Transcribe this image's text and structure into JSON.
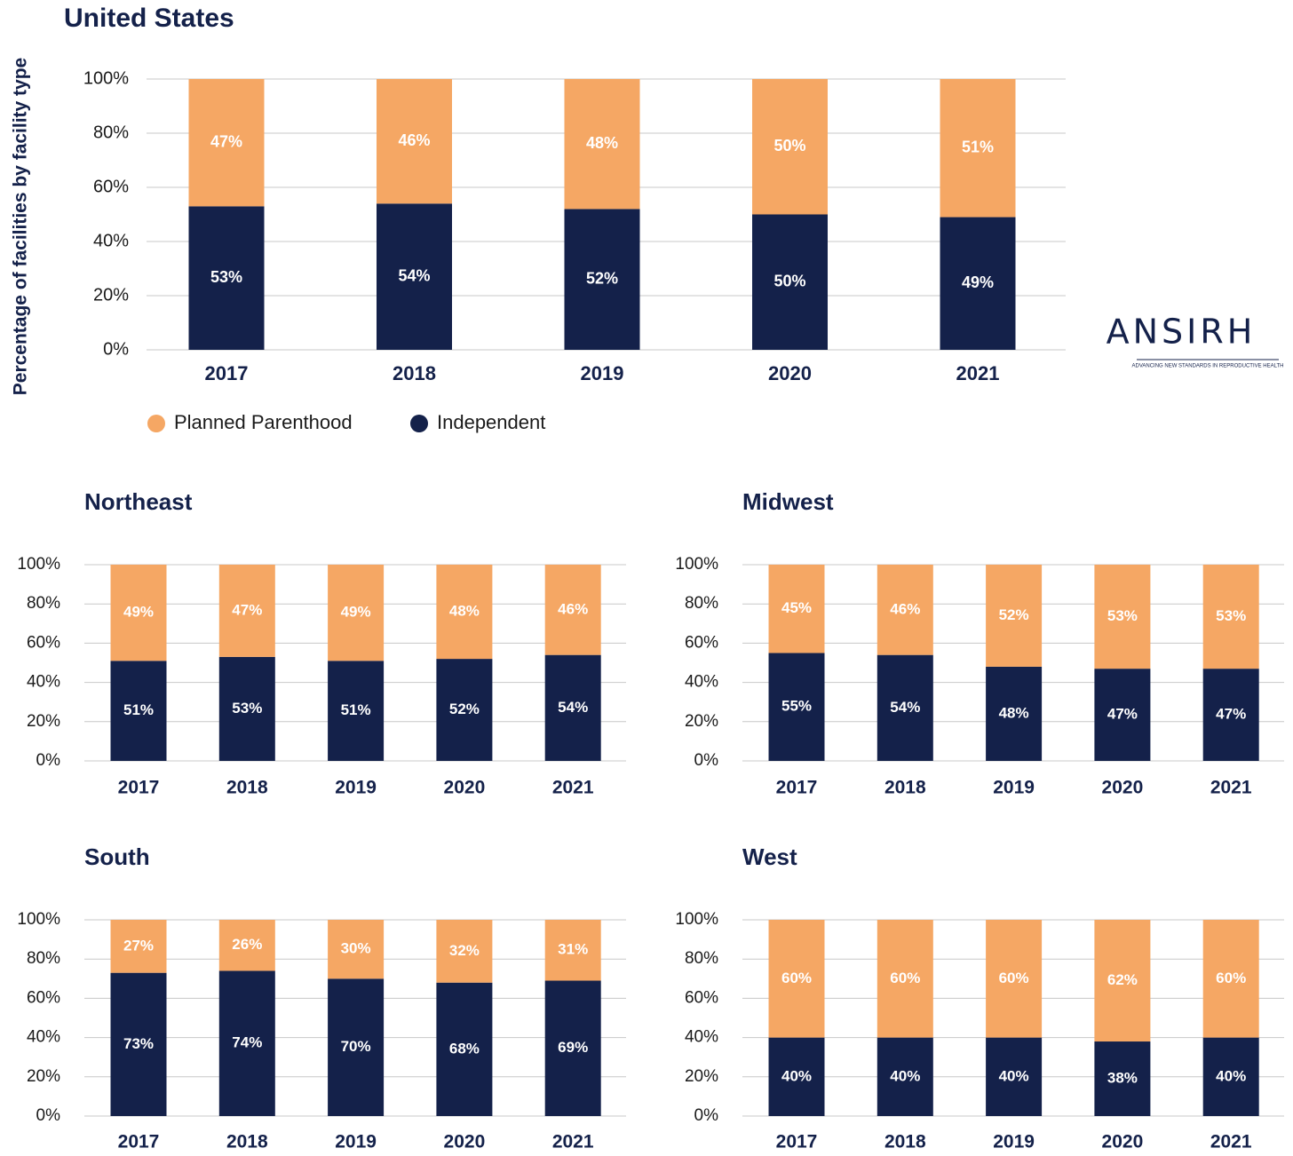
{
  "logo": {
    "name": "ANSIRH",
    "tagline": "ADVANCING NEW STANDARDS IN REPRODUCTIVE HEALTH"
  },
  "chart_data": [
    {
      "type": "stacked_bar",
      "title": "United States",
      "ylabel": "Percentage of facilities by facility type",
      "categories": [
        "2017",
        "2018",
        "2019",
        "2020",
        "2021"
      ],
      "series": [
        {
          "name": "Planned Parenthood",
          "color": "#f5a764",
          "values": [
            47,
            46,
            48,
            50,
            51
          ],
          "value_labels": [
            "47%",
            "46%",
            "48%",
            "50%",
            "51%"
          ]
        },
        {
          "name": "Independent",
          "color": "#14214a",
          "values": [
            53,
            54,
            52,
            50,
            49
          ],
          "value_labels": [
            "53%",
            "54%",
            "52%",
            "50%",
            "49%"
          ]
        }
      ],
      "ylim": [
        0,
        100
      ],
      "yticks": [
        {
          "value": 0,
          "label": "0%"
        },
        {
          "value": 20,
          "label": "20%"
        },
        {
          "value": 40,
          "label": "40%"
        },
        {
          "value": 60,
          "label": "60%"
        },
        {
          "value": 80,
          "label": "80%"
        },
        {
          "value": 100,
          "label": "100%"
        }
      ],
      "grid": true,
      "legend": "bottom"
    },
    {
      "type": "stacked_bar",
      "title": "Northeast",
      "categories": [
        "2017",
        "2018",
        "2019",
        "2020",
        "2021"
      ],
      "series": [
        {
          "name": "Planned Parenthood",
          "color": "#f5a764",
          "values": [
            49,
            47,
            49,
            48,
            46
          ],
          "value_labels": [
            "49%",
            "47%",
            "49%",
            "48%",
            "46%"
          ]
        },
        {
          "name": "Independent",
          "color": "#14214a",
          "values": [
            51,
            53,
            51,
            52,
            54
          ],
          "value_labels": [
            "51%",
            "53%",
            "51%",
            "52%",
            "54%"
          ]
        }
      ],
      "ylim": [
        0,
        100
      ],
      "yticks": [
        {
          "value": 0,
          "label": "0%"
        },
        {
          "value": 20,
          "label": "20%"
        },
        {
          "value": 40,
          "label": "40%"
        },
        {
          "value": 60,
          "label": "60%"
        },
        {
          "value": 80,
          "label": "80%"
        },
        {
          "value": 100,
          "label": "100%"
        }
      ],
      "grid": true
    },
    {
      "type": "stacked_bar",
      "title": "Midwest",
      "categories": [
        "2017",
        "2018",
        "2019",
        "2020",
        "2021"
      ],
      "series": [
        {
          "name": "Planned Parenthood",
          "color": "#f5a764",
          "values": [
            45,
            46,
            52,
            53,
            53
          ],
          "value_labels": [
            "45%",
            "46%",
            "52%",
            "53%",
            "53%"
          ]
        },
        {
          "name": "Independent",
          "color": "#14214a",
          "values": [
            55,
            54,
            48,
            47,
            47
          ],
          "value_labels": [
            "55%",
            "54%",
            "48%",
            "47%",
            "47%"
          ]
        }
      ],
      "ylim": [
        0,
        100
      ],
      "yticks": [
        {
          "value": 0,
          "label": "0%"
        },
        {
          "value": 20,
          "label": "20%"
        },
        {
          "value": 40,
          "label": "40%"
        },
        {
          "value": 60,
          "label": "60%"
        },
        {
          "value": 80,
          "label": "80%"
        },
        {
          "value": 100,
          "label": "100%"
        }
      ],
      "grid": true
    },
    {
      "type": "stacked_bar",
      "title": "South",
      "categories": [
        "2017",
        "2018",
        "2019",
        "2020",
        "2021"
      ],
      "series": [
        {
          "name": "Planned Parenthood",
          "color": "#f5a764",
          "values": [
            27,
            26,
            30,
            32,
            31
          ],
          "value_labels": [
            "27%",
            "26%",
            "30%",
            "32%",
            "31%"
          ]
        },
        {
          "name": "Independent",
          "color": "#14214a",
          "values": [
            73,
            74,
            70,
            68,
            69
          ],
          "value_labels": [
            "73%",
            "74%",
            "70%",
            "68%",
            "69%"
          ]
        }
      ],
      "ylim": [
        0,
        100
      ],
      "yticks": [
        {
          "value": 0,
          "label": "0%"
        },
        {
          "value": 20,
          "label": "20%"
        },
        {
          "value": 40,
          "label": "40%"
        },
        {
          "value": 60,
          "label": "60%"
        },
        {
          "value": 80,
          "label": "80%"
        },
        {
          "value": 100,
          "label": "100%"
        }
      ],
      "grid": true
    },
    {
      "type": "stacked_bar",
      "title": "West",
      "categories": [
        "2017",
        "2018",
        "2019",
        "2020",
        "2021"
      ],
      "series": [
        {
          "name": "Planned Parenthood",
          "color": "#f5a764",
          "values": [
            60,
            60,
            60,
            62,
            60
          ],
          "value_labels": [
            "60%",
            "60%",
            "60%",
            "62%",
            "60%"
          ]
        },
        {
          "name": "Independent",
          "color": "#14214a",
          "values": [
            40,
            40,
            40,
            38,
            40
          ],
          "value_labels": [
            "40%",
            "40%",
            "40%",
            "38%",
            "40%"
          ]
        }
      ],
      "ylim": [
        0,
        100
      ],
      "yticks": [
        {
          "value": 0,
          "label": "0%"
        },
        {
          "value": 20,
          "label": "20%"
        },
        {
          "value": 40,
          "label": "40%"
        },
        {
          "value": 60,
          "label": "60%"
        },
        {
          "value": 80,
          "label": "80%"
        },
        {
          "value": 100,
          "label": "100%"
        }
      ],
      "grid": true
    }
  ]
}
